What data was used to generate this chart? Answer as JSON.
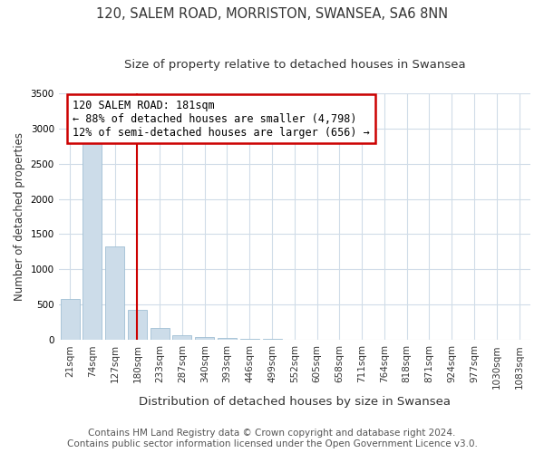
{
  "title": "120, SALEM ROAD, MORRISTON, SWANSEA, SA6 8NN",
  "subtitle": "Size of property relative to detached houses in Swansea",
  "xlabel": "Distribution of detached houses by size in Swansea",
  "ylabel": "Number of detached properties",
  "categories": [
    "21sqm",
    "74sqm",
    "127sqm",
    "180sqm",
    "233sqm",
    "287sqm",
    "340sqm",
    "393sqm",
    "446sqm",
    "499sqm",
    "552sqm",
    "605sqm",
    "658sqm",
    "711sqm",
    "764sqm",
    "818sqm",
    "871sqm",
    "924sqm",
    "977sqm",
    "1030sqm",
    "1083sqm"
  ],
  "values": [
    580,
    2900,
    1320,
    420,
    175,
    70,
    45,
    30,
    15,
    10,
    0,
    0,
    0,
    0,
    0,
    0,
    0,
    0,
    0,
    0,
    0
  ],
  "ylim": [
    0,
    3500
  ],
  "bar_color": "#ccdce9",
  "bar_edge_color": "#a0bfd4",
  "vline_x_index": 3,
  "vline_color": "#cc0000",
  "annotation_line1": "120 SALEM ROAD: 181sqm",
  "annotation_line2": "← 88% of detached houses are smaller (4,798)",
  "annotation_line3": "12% of semi-detached houses are larger (656) →",
  "annotation_box_edge_color": "#cc0000",
  "footer_line1": "Contains HM Land Registry data © Crown copyright and database right 2024.",
  "footer_line2": "Contains public sector information licensed under the Open Government Licence v3.0.",
  "bg_color": "#ffffff",
  "plot_bg_color": "#ffffff",
  "grid_color": "#d0dce8",
  "title_fontsize": 10.5,
  "subtitle_fontsize": 9.5,
  "tick_fontsize": 7.5,
  "ylabel_fontsize": 8.5,
  "xlabel_fontsize": 9.5,
  "annot_fontsize": 8.5,
  "footer_fontsize": 7.5
}
